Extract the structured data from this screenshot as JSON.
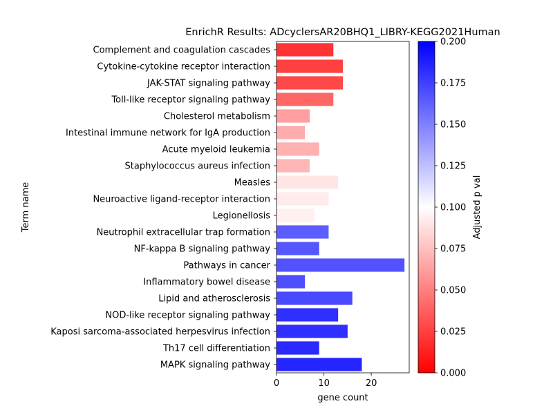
{
  "chart_data": {
    "type": "bar",
    "orientation": "horizontal",
    "title": "EnrichR Results: ADcyclersAR20BHQ1_LIBRY-KEGG2021Human",
    "xlabel": "gene count",
    "ylabel": "Term name",
    "xlim": [
      0,
      28
    ],
    "xticks": [
      0,
      10,
      20
    ],
    "categories": [
      "Complement and coagulation cascades",
      "Cytokine-cytokine receptor interaction",
      "JAK-STAT signaling pathway",
      "Toll-like receptor signaling pathway",
      "Cholesterol metabolism",
      "Intestinal immune network for IgA production",
      "Acute myeloid leukemia",
      "Staphylococcus aureus infection",
      "Measles",
      "Neuroactive ligand-receptor interaction",
      "Legionellosis",
      "Neutrophil extracellular trap formation",
      "NF-kappa B signaling pathway",
      "Pathways in cancer",
      "Inflammatory bowel disease",
      "Lipid and atherosclerosis",
      "NOD-like receptor signaling pathway",
      "Kaposi sarcoma-associated herpesvirus infection",
      "Th17 cell differentiation",
      "MAPK signaling pathway"
    ],
    "values": [
      12,
      14,
      14,
      12,
      7,
      6,
      9,
      7,
      13,
      11,
      8,
      11,
      9,
      27,
      6,
      16,
      13,
      15,
      9,
      18
    ],
    "adjusted_p": [
      0.012,
      0.018,
      0.021,
      0.035,
      0.06,
      0.066,
      0.068,
      0.07,
      0.09,
      0.092,
      0.094,
      0.17,
      0.172,
      0.174,
      0.176,
      0.178,
      0.19,
      0.19,
      0.192,
      0.194
    ],
    "colorbar": {
      "label": "Adjusted p val",
      "range": [
        0,
        0.2
      ],
      "ticks": [
        "0.000",
        "0.025",
        "0.050",
        "0.075",
        "0.100",
        "0.125",
        "0.150",
        "0.175",
        "0.200"
      ],
      "colormap": [
        "#ff0000",
        "#ffffff",
        "#0000ff"
      ]
    },
    "grid": false,
    "legend": "none"
  }
}
